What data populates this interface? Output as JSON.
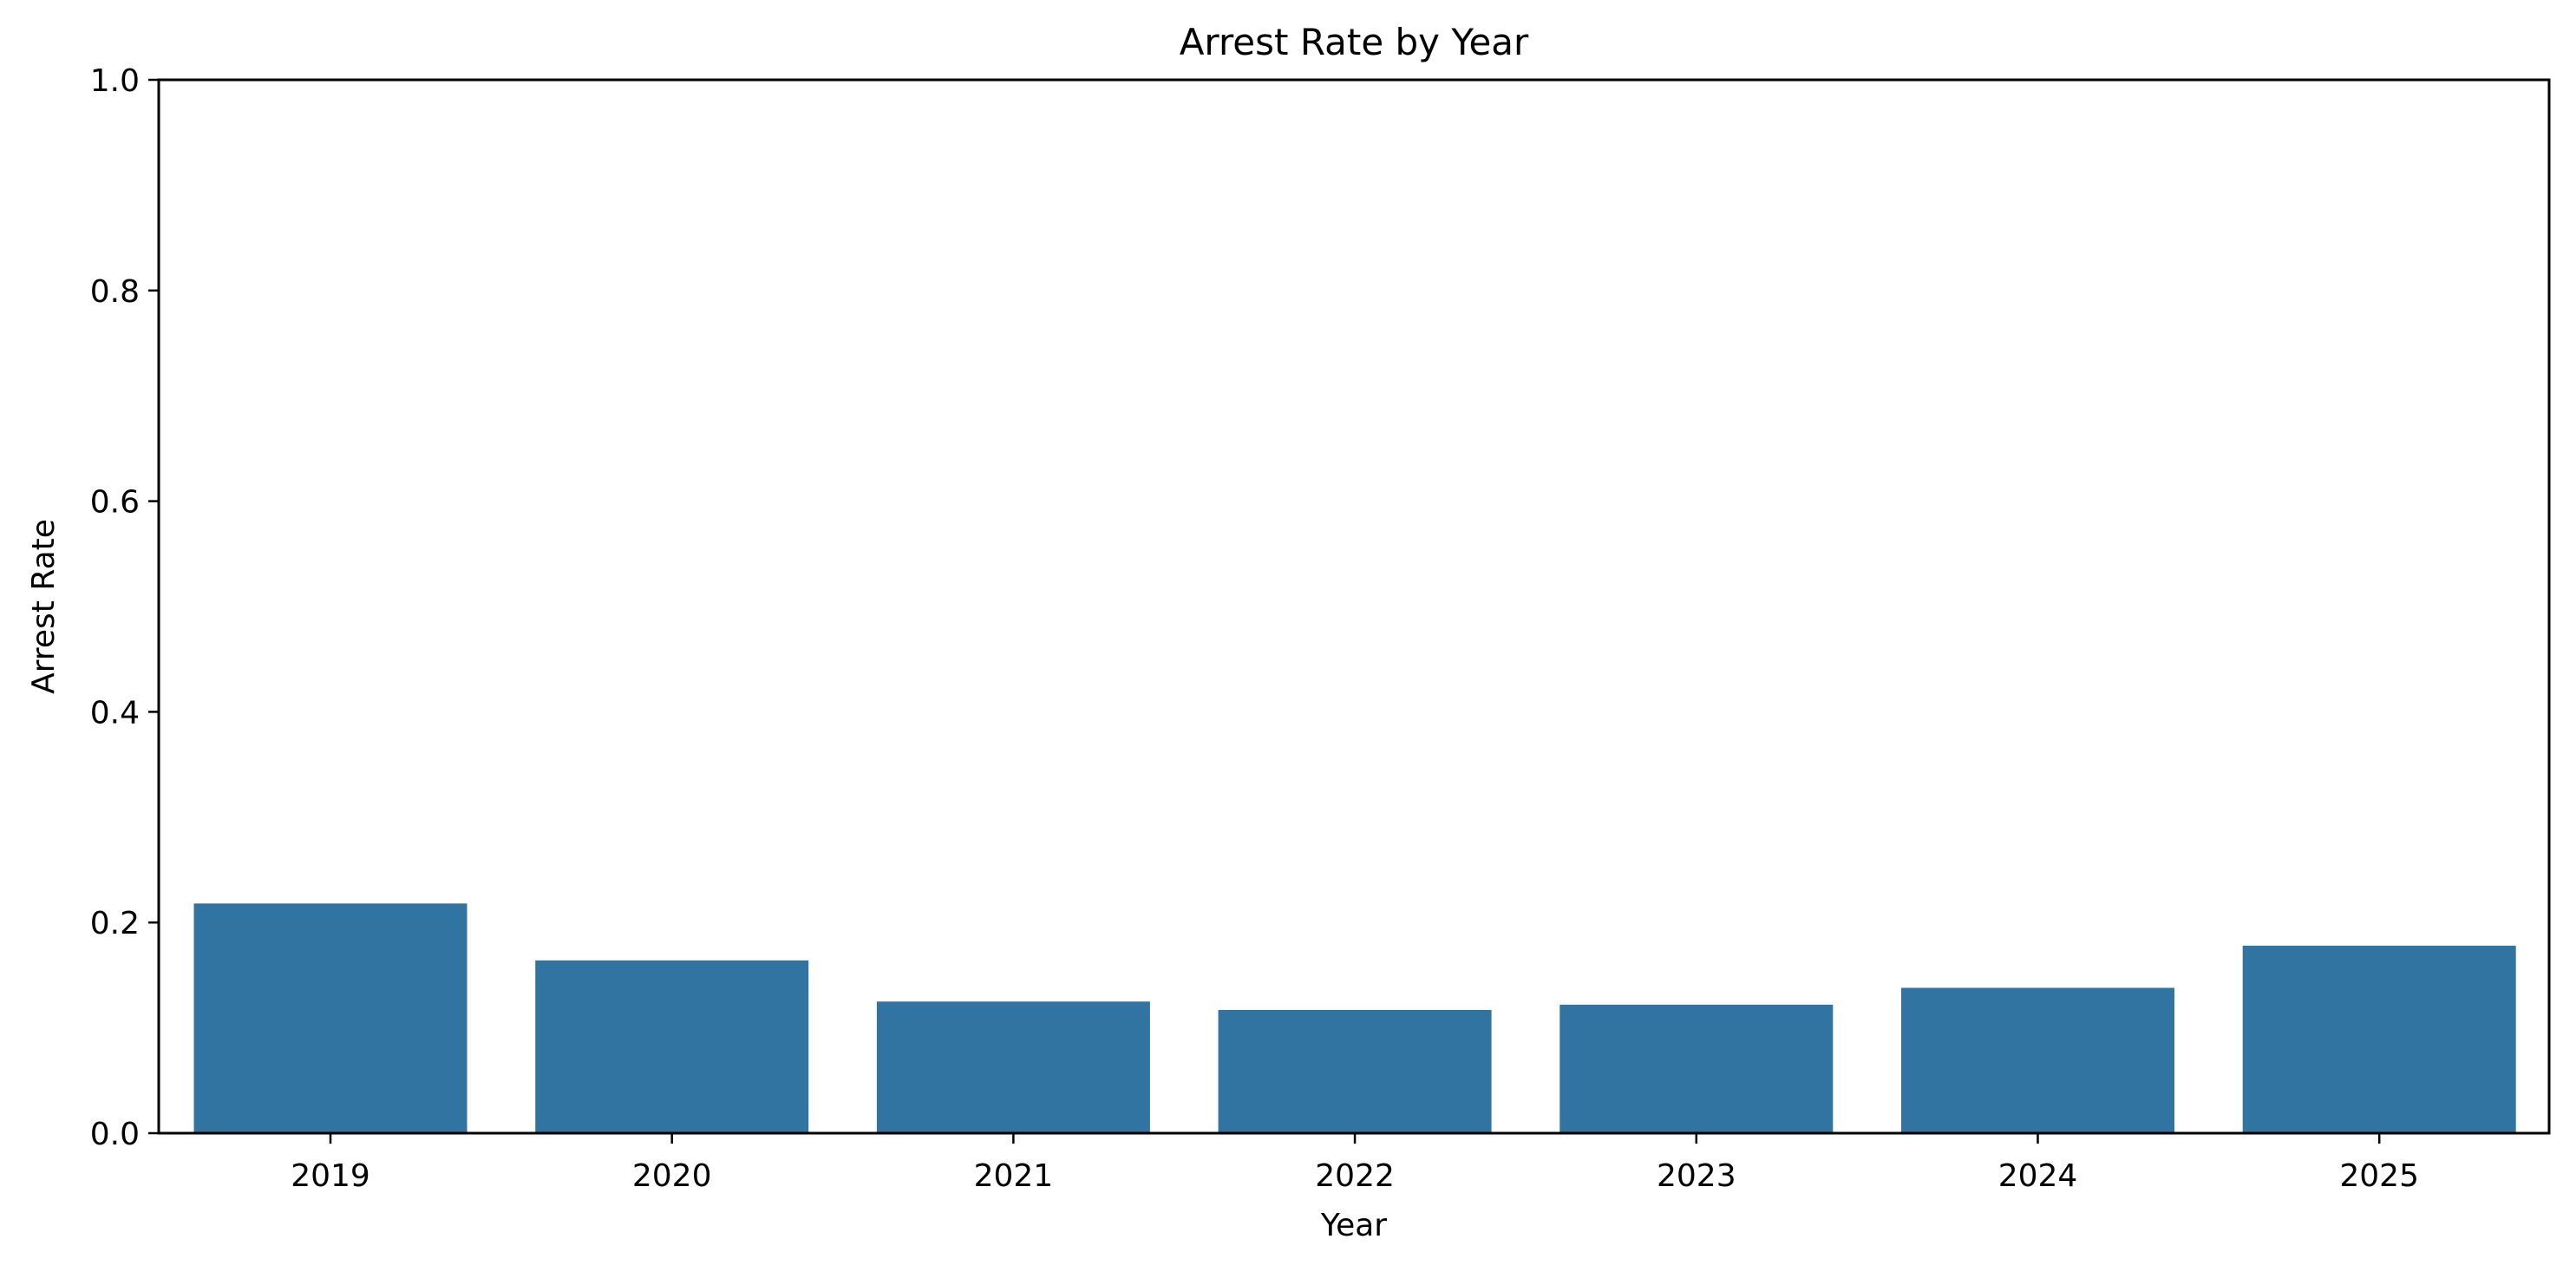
{
  "chart_data": {
    "type": "bar",
    "title": "Arrest Rate by Year",
    "xlabel": "Year",
    "ylabel": "Arrest Rate",
    "categories": [
      "2019",
      "2020",
      "2021",
      "2022",
      "2023",
      "2024",
      "2025"
    ],
    "values": [
      0.218,
      0.164,
      0.125,
      0.117,
      0.122,
      0.138,
      0.178
    ],
    "ylim": [
      0,
      1.0
    ],
    "yticks": [
      "0.0",
      "0.2",
      "0.4",
      "0.6",
      "0.8",
      "1.0"
    ],
    "grid": false,
    "legend": "none",
    "bar_color": "#3274a1"
  }
}
